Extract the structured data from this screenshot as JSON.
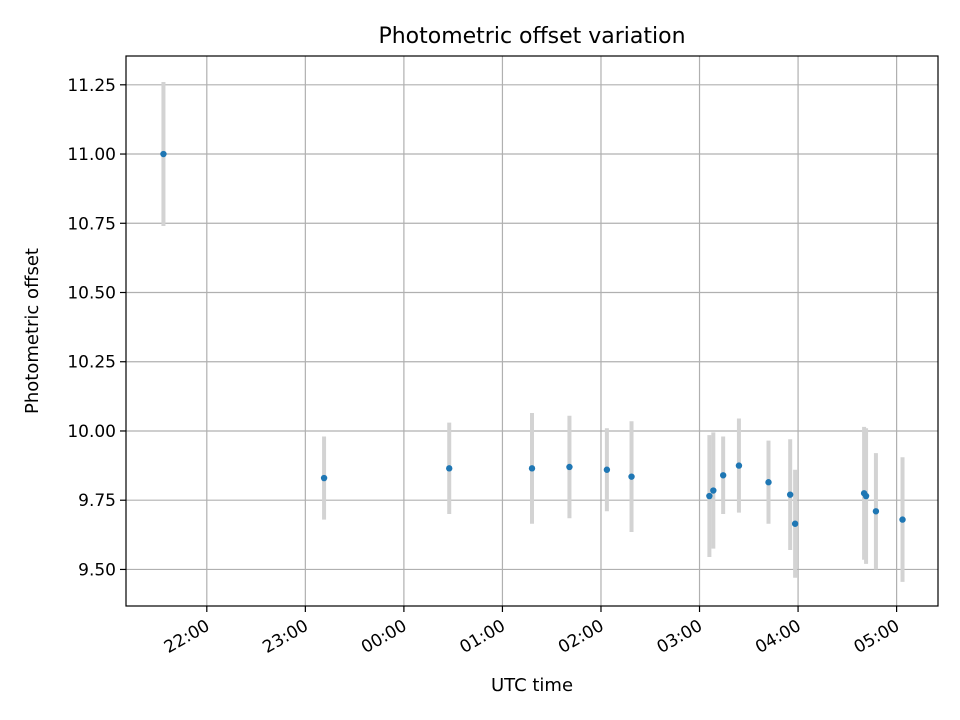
{
  "chart_data": {
    "type": "scatter",
    "title": "Photometric offset variation",
    "xlabel": "UTC time",
    "ylabel": "Photometric offset",
    "x_unit": "hours",
    "grid": true,
    "x_tick_labels": [
      "22:00",
      "23:00",
      "00:00",
      "01:00",
      "02:00",
      "03:00",
      "04:00",
      "05:00"
    ],
    "x_tick_hours": [
      22,
      23,
      24,
      25,
      26,
      27,
      28,
      29
    ],
    "xlim": [
      21.18,
      29.42
    ],
    "y_ticks": [
      9.5,
      9.75,
      10.0,
      10.25,
      10.5,
      10.75,
      11.0,
      11.25
    ],
    "y_tick_labels": [
      "9.50",
      "9.75",
      "10.00",
      "10.25",
      "10.50",
      "10.75",
      "11.00",
      "11.25"
    ],
    "ylim": [
      9.368,
      11.354
    ],
    "points_color": "#1f77b4",
    "errorbar_color": "#d3d3d3",
    "points": [
      {
        "t": 21.56,
        "y": 11.0,
        "err": 0.26
      },
      {
        "t": 23.19,
        "y": 9.83,
        "err": 0.15
      },
      {
        "t": 24.46,
        "y": 9.865,
        "err": 0.165
      },
      {
        "t": 25.3,
        "y": 9.865,
        "err": 0.2
      },
      {
        "t": 25.68,
        "y": 9.87,
        "err": 0.185
      },
      {
        "t": 26.06,
        "y": 9.86,
        "err": 0.15
      },
      {
        "t": 26.31,
        "y": 9.835,
        "err": 0.2
      },
      {
        "t": 27.1,
        "y": 9.765,
        "err": 0.22
      },
      {
        "t": 27.14,
        "y": 9.785,
        "err": 0.21
      },
      {
        "t": 27.24,
        "y": 9.84,
        "err": 0.14
      },
      {
        "t": 27.4,
        "y": 9.875,
        "err": 0.17
      },
      {
        "t": 27.7,
        "y": 9.815,
        "err": 0.15
      },
      {
        "t": 27.92,
        "y": 9.77,
        "err": 0.2
      },
      {
        "t": 27.97,
        "y": 9.665,
        "err": 0.195
      },
      {
        "t": 28.67,
        "y": 9.775,
        "err": 0.24
      },
      {
        "t": 28.69,
        "y": 9.765,
        "err": 0.245
      },
      {
        "t": 28.79,
        "y": 9.71,
        "err": 0.21
      },
      {
        "t": 29.06,
        "y": 9.68,
        "err": 0.225
      }
    ]
  }
}
